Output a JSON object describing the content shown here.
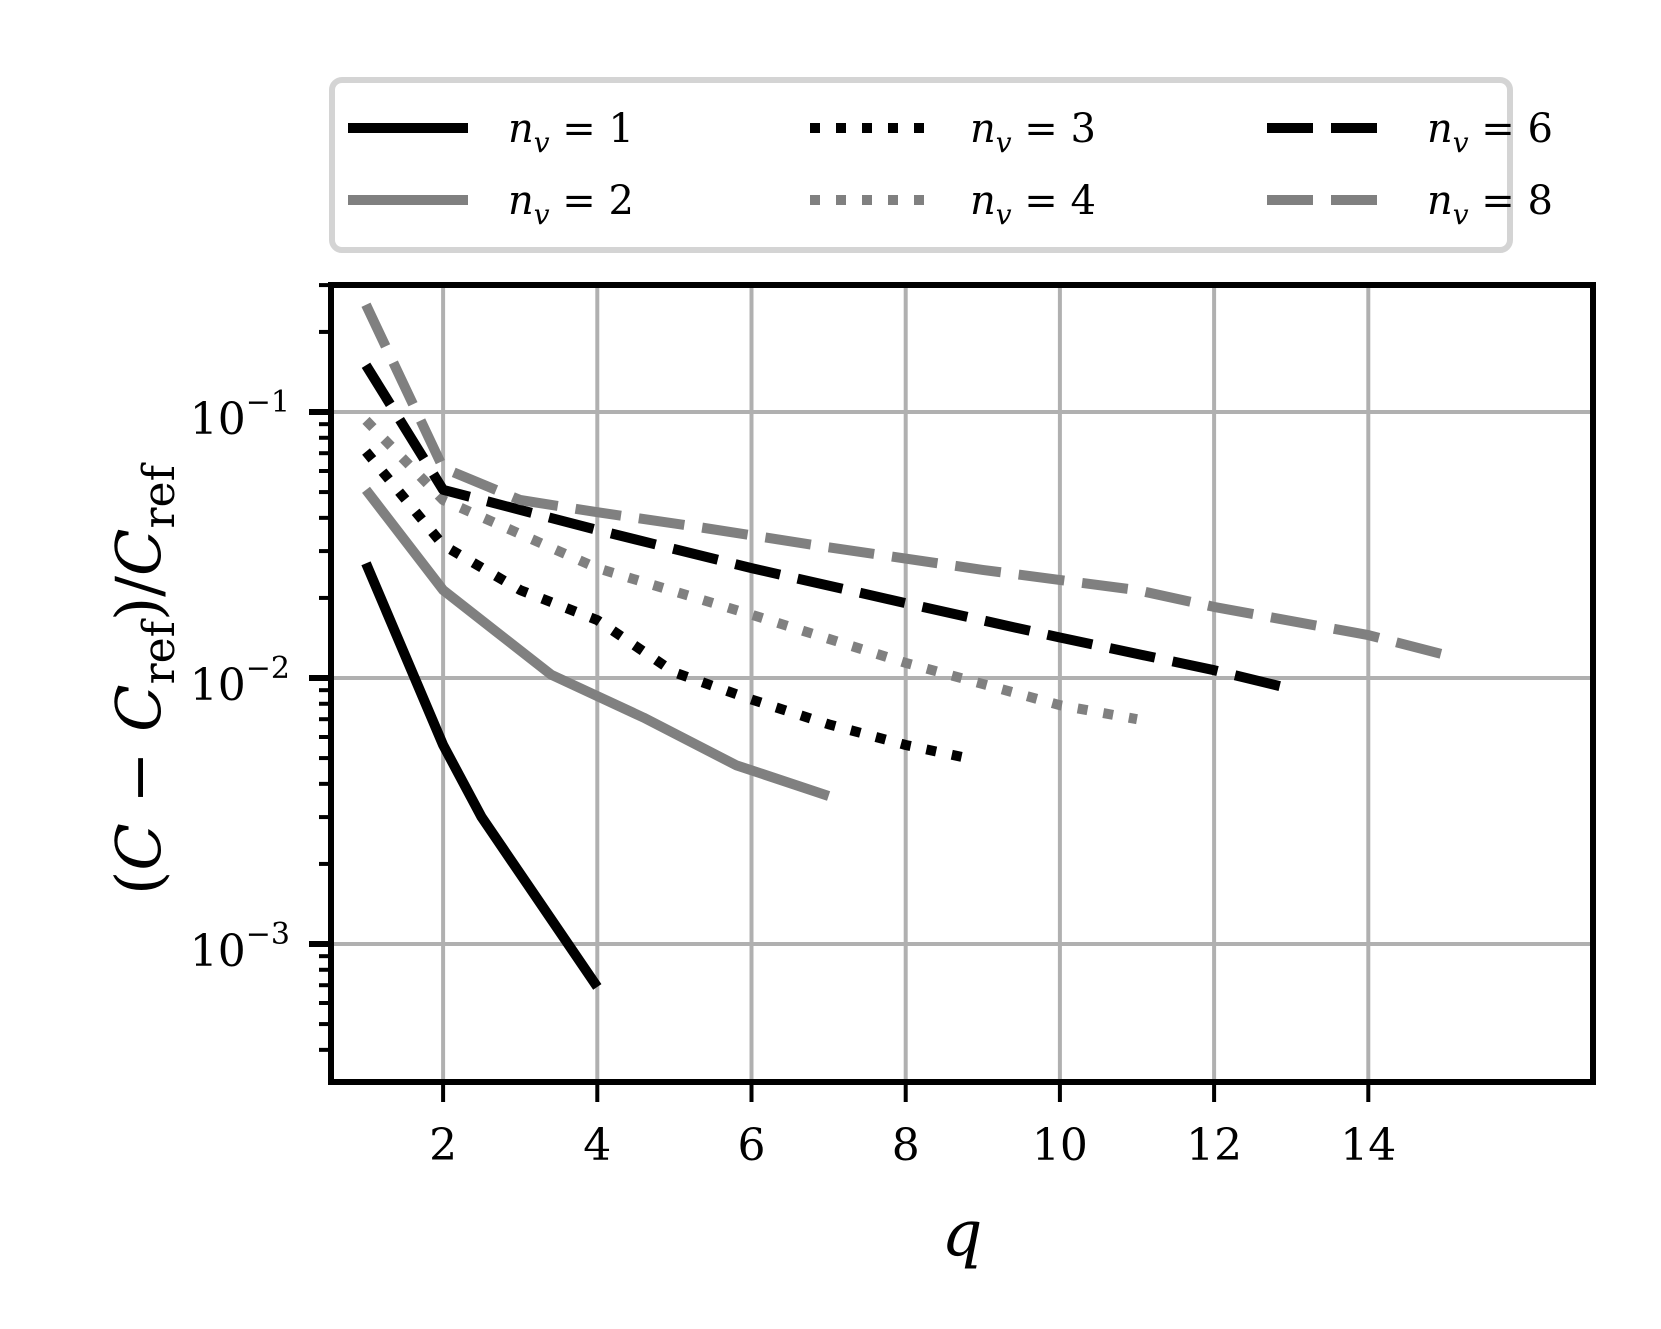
{
  "chart_data": {
    "type": "line",
    "title": "",
    "xlabel": "q",
    "ylabel": "(C − C_ref) / C_ref",
    "yscale": "log",
    "xlim": [
      0.3,
      15.6
    ],
    "ylim": [
      0.00055,
      0.32
    ],
    "grid": true,
    "legend_position": "top (outside axes, 3 columns)",
    "x_ticks": [
      2,
      4,
      6,
      8,
      10,
      12,
      14
    ],
    "x_tick_labels": [
      "2",
      "4",
      "6",
      "8",
      "10",
      "12",
      "14"
    ],
    "y_ticks": [
      0.1,
      0.01,
      0.001
    ],
    "y_tick_labels": [
      {
        "base": "10",
        "exp": "−1"
      },
      {
        "base": "10",
        "exp": "−2"
      },
      {
        "base": "10",
        "exp": "−3"
      }
    ],
    "series": [
      {
        "name": "n_v = 1",
        "label_var": "n",
        "label_sub": "v",
        "label_value": "1",
        "color": "#000000",
        "style": "solid",
        "x": [
          1,
          2,
          2.5,
          4
        ],
        "values": [
          0.027,
          0.0056,
          0.003,
          0.00069
        ]
      },
      {
        "name": "n_v = 2",
        "label_var": "n",
        "label_sub": "v",
        "label_value": "2",
        "color": "#808080",
        "style": "solid",
        "x": [
          1,
          2,
          3.4,
          4.6,
          5.8,
          7
        ],
        "values": [
          0.051,
          0.0214,
          0.0103,
          0.0071,
          0.0047,
          0.0036
        ]
      },
      {
        "name": "n_v = 3",
        "label_var": "n",
        "label_sub": "v",
        "label_value": "3",
        "color": "#000000",
        "style": "dotted",
        "x": [
          1,
          2,
          3,
          4,
          5,
          6,
          7,
          8,
          8.8
        ],
        "values": [
          0.071,
          0.0316,
          0.0214,
          0.0165,
          0.0105,
          0.0083,
          0.0067,
          0.0056,
          0.005
        ]
      },
      {
        "name": "n_v = 4",
        "label_var": "n",
        "label_sub": "v",
        "label_value": "4",
        "color": "#808080",
        "style": "dotted",
        "x": [
          1,
          2,
          4,
          6,
          8,
          10,
          11
        ],
        "values": [
          0.093,
          0.0467,
          0.0259,
          0.0173,
          0.0114,
          0.0079,
          0.007
        ]
      },
      {
        "name": "n_v = 6",
        "label_var": "n",
        "label_sub": "v",
        "label_value": "6",
        "color": "#000000",
        "style": "dashed",
        "x": [
          1,
          2,
          4,
          6,
          8,
          10,
          12,
          13
        ],
        "values": [
          0.15,
          0.051,
          0.036,
          0.0259,
          0.0191,
          0.0142,
          0.0107,
          0.0091
        ]
      },
      {
        "name": "n_v = 8",
        "label_var": "n",
        "label_sub": "v",
        "label_value": "8",
        "color": "#808080",
        "style": "dashed",
        "x": [
          1,
          2,
          3,
          4,
          5.3,
          7,
          9,
          11,
          12,
          14,
          15
        ],
        "values": [
          0.253,
          0.0616,
          0.0467,
          0.042,
          0.037,
          0.031,
          0.0255,
          0.0214,
          0.0185,
          0.0145,
          0.0122
        ]
      }
    ]
  },
  "legend": {
    "items": [
      {
        "var": "n",
        "sub": "v",
        "eq": "= 1"
      },
      {
        "var": "n",
        "sub": "v",
        "eq": "= 3"
      },
      {
        "var": "n",
        "sub": "v",
        "eq": "= 6"
      },
      {
        "var": "n",
        "sub": "v",
        "eq": "= 2"
      },
      {
        "var": "n",
        "sub": "v",
        "eq": "= 4"
      },
      {
        "var": "n",
        "sub": "v",
        "eq": "= 8"
      }
    ]
  },
  "axes": {
    "xlabel": "q",
    "ylabel_parts": {
      "open": "(",
      "c": "C",
      "minus": " − ",
      "cref": "C",
      "ref_sub": "ref",
      "close": ")",
      "slash": "/",
      "cref2": "C",
      "ref_sub2": "ref"
    }
  },
  "colors": {
    "black": "#000000",
    "gray": "#808080",
    "grid": "#b0b0b0",
    "legend_border": "#d4d4d4"
  }
}
